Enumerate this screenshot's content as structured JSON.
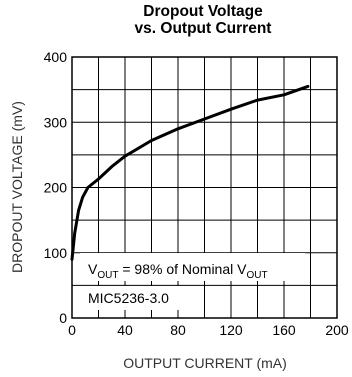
{
  "chart_data": {
    "type": "line",
    "title_line1": "Dropout Voltage",
    "title_line2": "vs. Output Current",
    "xlabel": "OUTPUT CURRENT (mA)",
    "ylabel": "DROPOUT VOLTAGE (mV)",
    "xlim": [
      0,
      200
    ],
    "ylim": [
      0,
      400
    ],
    "x_ticks": [
      0,
      40,
      80,
      120,
      160,
      200
    ],
    "y_ticks": [
      0,
      100,
      200,
      300,
      400
    ],
    "grid": true,
    "series": [
      {
        "x": [
          0,
          2,
          5,
          8,
          12,
          20,
          30,
          40,
          60,
          80,
          100,
          120,
          140,
          160,
          178
        ],
        "y": [
          90,
          130,
          165,
          185,
          200,
          213,
          232,
          248,
          272,
          290,
          305,
          320,
          334,
          342,
          355
        ]
      }
    ],
    "annotations": {
      "vout_prefix": "V",
      "vout_sub": "OUT",
      "vout_middle": " = 98% of Nominal V",
      "vout_sub2": "OUT",
      "part": "MIC5236-3.0"
    },
    "colors": {
      "line": "#000000",
      "grid": "#000000",
      "background": "#ffffff"
    }
  }
}
